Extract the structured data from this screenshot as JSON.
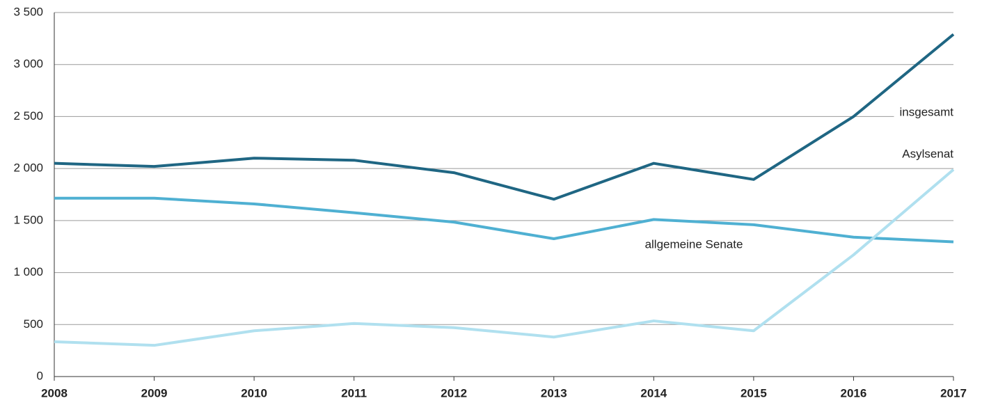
{
  "chart_data": {
    "type": "line",
    "categories": [
      "2008",
      "2009",
      "2010",
      "2011",
      "2012",
      "2013",
      "2014",
      "2015",
      "2016",
      "2017"
    ],
    "series": [
      {
        "name": "insgesamt",
        "color": "#1f6683",
        "values": [
          2050,
          2020,
          2100,
          2080,
          1960,
          1705,
          2050,
          1895,
          2500,
          3290
        ]
      },
      {
        "name": "allgemeine Senate",
        "color": "#4fb0d2",
        "values": [
          1715,
          1715,
          1660,
          1575,
          1485,
          1325,
          1510,
          1460,
          1340,
          1295
        ]
      },
      {
        "name": "Asylsenat",
        "color": "#b0e0ef",
        "values": [
          335,
          300,
          440,
          510,
          470,
          380,
          535,
          440,
          1170,
          1990
        ]
      }
    ],
    "ylim": [
      0,
      3500
    ],
    "yticks": [
      0,
      500,
      {
        "value": 1000,
        "label": "1 000"
      },
      {
        "value": 1500,
        "label": "1 500"
      },
      {
        "value": 2000,
        "label": "2 000"
      },
      {
        "value": 2500,
        "label": "2 500"
      },
      {
        "value": 3000,
        "label": "3 000"
      },
      {
        "value": 3500,
        "label": "3 500"
      }
    ],
    "grid": true
  }
}
